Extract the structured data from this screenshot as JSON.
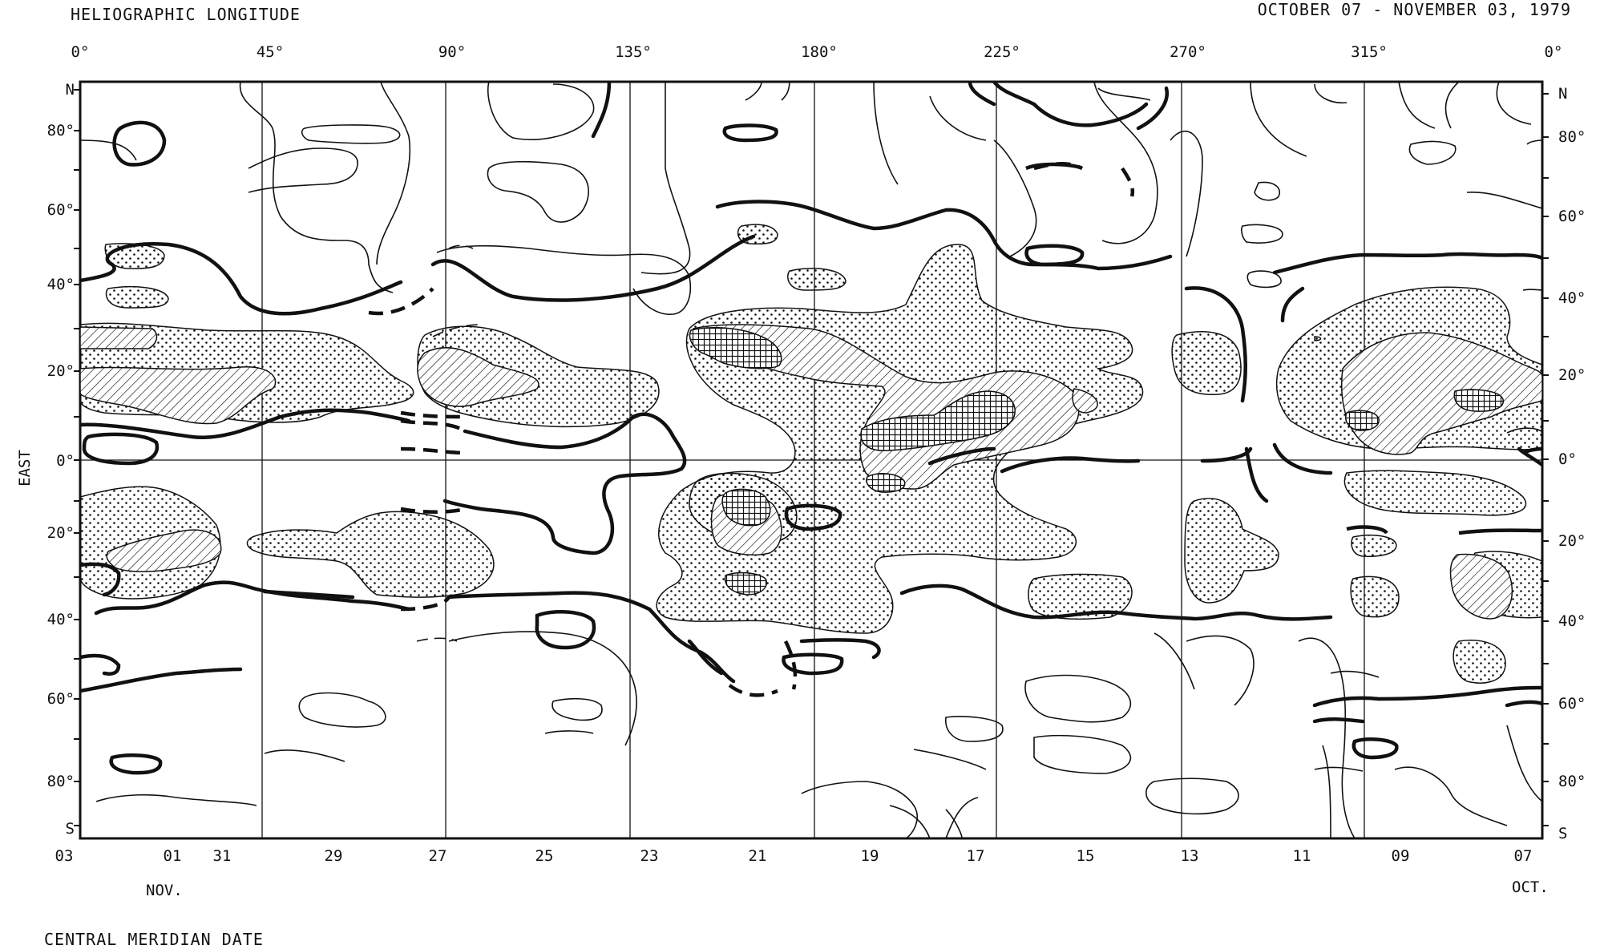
{
  "header": {
    "title": "HELIOGRAPHIC LONGITUDE",
    "date_range": "OCTOBER 07 - NOVEMBER 03, 1979"
  },
  "longitude_ticks": [
    "0°",
    "45°",
    "90°",
    "135°",
    "180°",
    "225°",
    "270°",
    "315°",
    "0°"
  ],
  "left_axis": {
    "side_label": "EAST",
    "north": "N",
    "south": "S",
    "ticks": [
      "80°",
      "60°",
      "40°",
      "20°",
      "0°",
      "20°",
      "40°",
      "60°",
      "80°"
    ]
  },
  "right_axis": {
    "north": "N",
    "south": "S",
    "ticks": [
      "80°",
      "60°",
      "40°",
      "20°",
      "0°",
      "20°",
      "40°",
      "60°",
      "80°"
    ]
  },
  "bottom_axis": {
    "dates": [
      "03",
      "01",
      "31",
      "29",
      "27",
      "25",
      "23",
      "21",
      "19",
      "17",
      "15",
      "13",
      "11",
      "09",
      "07"
    ],
    "month_left": "NOV.",
    "month_right": "OCT.",
    "caption": "CENTRAL MERIDIAN DATE"
  }
}
